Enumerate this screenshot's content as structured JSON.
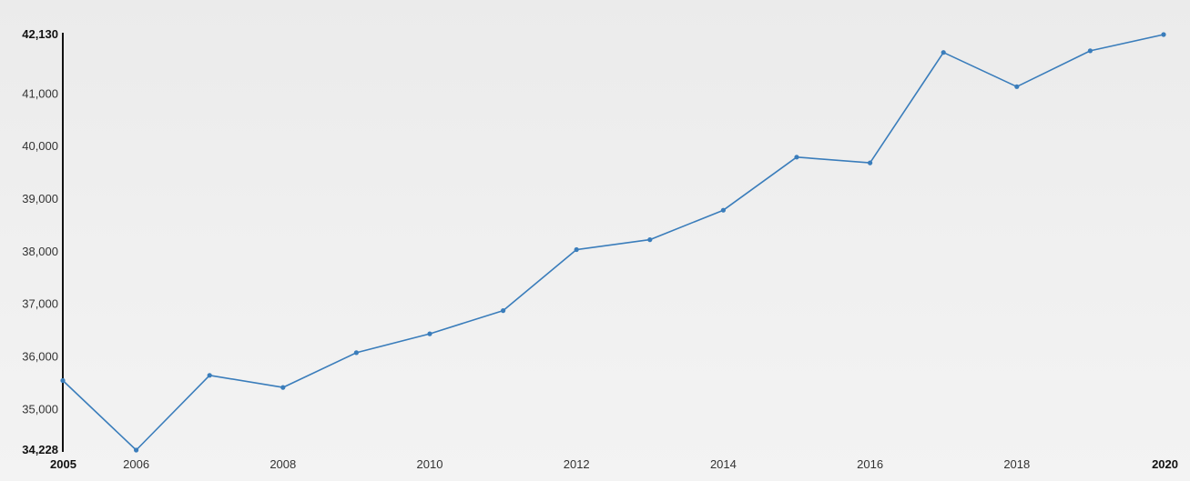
{
  "chart_data": {
    "type": "line",
    "title": "",
    "xlabel": "",
    "ylabel": "",
    "xlim": [
      2005,
      2020
    ],
    "ylim": [
      34228,
      42130
    ],
    "grid": false,
    "legend": "none",
    "line_color": "#3a7dbb",
    "axis_color": "#111111",
    "y_ticks": [
      {
        "value": 42130,
        "label": "42,130",
        "bold": true
      },
      {
        "value": 41000,
        "label": "41,000",
        "bold": false
      },
      {
        "value": 40000,
        "label": "40,000",
        "bold": false
      },
      {
        "value": 39000,
        "label": "39,000",
        "bold": false
      },
      {
        "value": 38000,
        "label": "38,000",
        "bold": false
      },
      {
        "value": 37000,
        "label": "37,000",
        "bold": false
      },
      {
        "value": 36000,
        "label": "36,000",
        "bold": false
      },
      {
        "value": 35000,
        "label": "35,000",
        "bold": false
      },
      {
        "value": 34228,
        "label": "34,228",
        "bold": true
      }
    ],
    "x_ticks": [
      {
        "value": 2005,
        "label": "2005",
        "bold": true
      },
      {
        "value": 2006,
        "label": "2006",
        "bold": false
      },
      {
        "value": 2008,
        "label": "2008",
        "bold": false
      },
      {
        "value": 2010,
        "label": "2010",
        "bold": false
      },
      {
        "value": 2012,
        "label": "2012",
        "bold": false
      },
      {
        "value": 2014,
        "label": "2014",
        "bold": false
      },
      {
        "value": 2016,
        "label": "2016",
        "bold": false
      },
      {
        "value": 2018,
        "label": "2018",
        "bold": false
      },
      {
        "value": 2020,
        "label": "2020",
        "bold": true
      }
    ],
    "series": [
      {
        "x": [
          2005,
          2006,
          2007,
          2008,
          2009,
          2010,
          2011,
          2012,
          2013,
          2014,
          2015,
          2016,
          2017,
          2018,
          2019,
          2020
        ],
        "values": [
          35550,
          34228,
          35650,
          35420,
          36080,
          36440,
          36880,
          38040,
          38230,
          38790,
          39800,
          39690,
          41790,
          41140,
          41820,
          42130
        ]
      }
    ]
  }
}
